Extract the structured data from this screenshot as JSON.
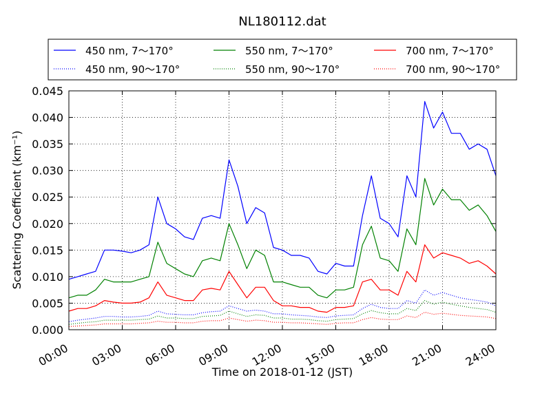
{
  "chart_data": {
    "type": "line",
    "title": "NL180112.dat",
    "xlabel": "Time on 2018-01-12 (JST)",
    "ylabel": "Scattering Coefficient (km⁻¹)",
    "xlim": [
      "00:00",
      "24:00"
    ],
    "ylim": [
      0,
      0.045
    ],
    "xticks": [
      "00:00",
      "03:00",
      "06:00",
      "09:00",
      "12:00",
      "15:00",
      "18:00",
      "21:00",
      "24:00"
    ],
    "yticks": [
      "0.000",
      "0.005",
      "0.010",
      "0.015",
      "0.020",
      "0.025",
      "0.030",
      "0.035",
      "0.040",
      "0.045"
    ],
    "grid": true,
    "legend_position": "top",
    "x": [
      "00:00",
      "00:30",
      "01:00",
      "01:30",
      "02:00",
      "02:30",
      "03:00",
      "03:30",
      "04:00",
      "04:30",
      "05:00",
      "05:30",
      "06:00",
      "06:30",
      "07:00",
      "07:30",
      "08:00",
      "08:30",
      "09:00",
      "09:30",
      "10:00",
      "10:30",
      "11:00",
      "11:30",
      "12:00",
      "12:30",
      "13:00",
      "13:30",
      "14:00",
      "14:30",
      "15:00",
      "15:30",
      "16:00",
      "16:30",
      "17:00",
      "17:30",
      "18:00",
      "18:30",
      "19:00",
      "19:30",
      "20:00",
      "20:30",
      "21:00",
      "21:30",
      "22:00",
      "22:30",
      "23:00",
      "23:30",
      "24:00"
    ],
    "series": [
      {
        "name": "450 nm, 7～170°",
        "color": "#0000ff",
        "style": "solid",
        "values": [
          0.0095,
          0.01,
          0.0105,
          0.011,
          0.015,
          0.015,
          0.0148,
          0.0145,
          0.015,
          0.016,
          0.025,
          0.02,
          0.019,
          0.0175,
          0.017,
          0.021,
          0.0215,
          0.021,
          0.032,
          0.027,
          0.02,
          0.023,
          0.022,
          0.0155,
          0.015,
          0.014,
          0.014,
          0.0135,
          0.011,
          0.0105,
          0.0125,
          0.012,
          0.012,
          0.0215,
          0.029,
          0.021,
          0.02,
          0.0175,
          0.029,
          0.025,
          0.043,
          0.038,
          0.041,
          0.037,
          0.037,
          0.034,
          0.035,
          0.034,
          0.029
        ]
      },
      {
        "name": "550 nm, 7～170°",
        "color": "#008000",
        "style": "solid",
        "values": [
          0.006,
          0.0065,
          0.0065,
          0.0075,
          0.0095,
          0.009,
          0.009,
          0.009,
          0.0095,
          0.01,
          0.0165,
          0.0125,
          0.0115,
          0.0105,
          0.01,
          0.013,
          0.0135,
          0.013,
          0.02,
          0.016,
          0.0115,
          0.015,
          0.014,
          0.009,
          0.009,
          0.0085,
          0.008,
          0.008,
          0.0065,
          0.006,
          0.0075,
          0.0075,
          0.008,
          0.016,
          0.0195,
          0.0135,
          0.013,
          0.011,
          0.019,
          0.016,
          0.0285,
          0.0235,
          0.0265,
          0.0245,
          0.0245,
          0.0225,
          0.0235,
          0.0215,
          0.0185
        ]
      },
      {
        "name": "700 nm, 7～170°",
        "color": "#ff0000",
        "style": "solid",
        "values": [
          0.0035,
          0.004,
          0.004,
          0.0045,
          0.0055,
          0.0052,
          0.005,
          0.005,
          0.0052,
          0.006,
          0.009,
          0.0065,
          0.006,
          0.0055,
          0.0055,
          0.0075,
          0.0078,
          0.0075,
          0.011,
          0.0085,
          0.006,
          0.008,
          0.008,
          0.0055,
          0.0045,
          0.0045,
          0.0042,
          0.0042,
          0.0035,
          0.0033,
          0.0042,
          0.0042,
          0.0045,
          0.009,
          0.0095,
          0.0075,
          0.0075,
          0.0065,
          0.011,
          0.009,
          0.016,
          0.0135,
          0.0145,
          0.014,
          0.0135,
          0.0125,
          0.013,
          0.012,
          0.0105
        ]
      },
      {
        "name": "450 nm, 90～170°",
        "color": "#0000ff",
        "style": "dotted",
        "values": [
          0.0015,
          0.0018,
          0.002,
          0.0022,
          0.0025,
          0.0025,
          0.0024,
          0.0024,
          0.0025,
          0.0027,
          0.0035,
          0.003,
          0.0029,
          0.0028,
          0.0028,
          0.0032,
          0.0034,
          0.0035,
          0.0045,
          0.004,
          0.0035,
          0.0037,
          0.0035,
          0.003,
          0.003,
          0.0028,
          0.0027,
          0.0026,
          0.0024,
          0.0023,
          0.0026,
          0.0027,
          0.0028,
          0.004,
          0.0048,
          0.0042,
          0.004,
          0.004,
          0.0055,
          0.005,
          0.0075,
          0.0065,
          0.007,
          0.0065,
          0.006,
          0.0057,
          0.0055,
          0.0052,
          0.0045
        ]
      },
      {
        "name": "550 nm, 90～170°",
        "color": "#008000",
        "style": "dotted",
        "values": [
          0.001,
          0.0012,
          0.0014,
          0.0015,
          0.0018,
          0.0018,
          0.0018,
          0.0018,
          0.0019,
          0.002,
          0.0026,
          0.0022,
          0.0022,
          0.0021,
          0.0021,
          0.0025,
          0.0026,
          0.0027,
          0.0035,
          0.003,
          0.0025,
          0.0028,
          0.0027,
          0.0022,
          0.0022,
          0.002,
          0.002,
          0.0019,
          0.0017,
          0.0016,
          0.0019,
          0.002,
          0.0021,
          0.003,
          0.0036,
          0.0032,
          0.003,
          0.003,
          0.004,
          0.0036,
          0.0055,
          0.0048,
          0.0052,
          0.0048,
          0.0045,
          0.0042,
          0.004,
          0.0038,
          0.0033
        ]
      },
      {
        "name": "700 nm, 90～170°",
        "color": "#ff0000",
        "style": "dotted",
        "values": [
          0.0006,
          0.0007,
          0.0008,
          0.0009,
          0.0011,
          0.0011,
          0.0011,
          0.0011,
          0.0012,
          0.0013,
          0.0016,
          0.0014,
          0.0014,
          0.0013,
          0.0013,
          0.0016,
          0.0017,
          0.0017,
          0.0022,
          0.0019,
          0.0016,
          0.0018,
          0.0017,
          0.0014,
          0.0014,
          0.0013,
          0.0013,
          0.0012,
          0.0011,
          0.001,
          0.0012,
          0.0013,
          0.0013,
          0.0019,
          0.0023,
          0.002,
          0.0019,
          0.0019,
          0.0026,
          0.0023,
          0.0033,
          0.0029,
          0.0031,
          0.0029,
          0.0027,
          0.0026,
          0.0025,
          0.0024,
          0.0021
        ]
      }
    ]
  }
}
